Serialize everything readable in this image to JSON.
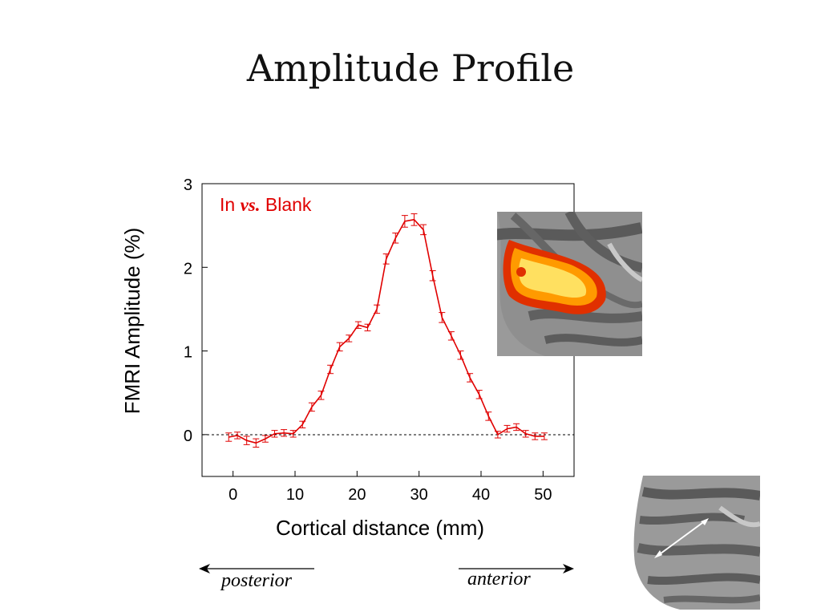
{
  "slide": {
    "title": "Amplitude Profile",
    "direction_left": "posterior",
    "direction_right": "anterior"
  },
  "chart_data": {
    "type": "line",
    "xlabel": "Cortical distance (mm)",
    "ylabel": "FMRI Amplitude (%)",
    "xlim": [
      -5,
      55
    ],
    "ylim": [
      -0.5,
      3
    ],
    "x_ticks": [
      0,
      10,
      20,
      30,
      40,
      50
    ],
    "y_ticks": [
      0,
      1,
      2,
      3
    ],
    "grid": false,
    "reference_line_y": 0,
    "annotation": {
      "prefix": "In",
      "italic": "vs.",
      "suffix": "Blank"
    },
    "series": [
      {
        "color": "#e00000",
        "x": [
          -0.7,
          0.7,
          2.2,
          3.7,
          5.2,
          6.7,
          8.2,
          9.7,
          11.2,
          12.7,
          14.2,
          15.7,
          17.2,
          18.7,
          20.2,
          21.7,
          23.2,
          24.7,
          26.2,
          27.7,
          29.2,
          30.7,
          32.2,
          33.7,
          35.2,
          36.7,
          38.2,
          39.7,
          41.2,
          42.7,
          44.2,
          45.7,
          47.2,
          48.7,
          50.2
        ],
        "y": [
          -0.03,
          -0.01,
          -0.07,
          -0.1,
          -0.05,
          0.01,
          0.02,
          0.01,
          0.12,
          0.33,
          0.47,
          0.78,
          1.05,
          1.15,
          1.31,
          1.28,
          1.5,
          2.1,
          2.35,
          2.55,
          2.57,
          2.45,
          1.9,
          1.4,
          1.18,
          0.95,
          0.68,
          0.48,
          0.22,
          0.0,
          0.07,
          0.09,
          0.01,
          -0.02,
          -0.02
        ],
        "error": [
          0.05,
          0.04,
          0.05,
          0.05,
          0.04,
          0.04,
          0.04,
          0.04,
          0.04,
          0.05,
          0.05,
          0.05,
          0.05,
          0.04,
          0.04,
          0.04,
          0.05,
          0.06,
          0.06,
          0.07,
          0.07,
          0.06,
          0.06,
          0.06,
          0.05,
          0.05,
          0.05,
          0.05,
          0.05,
          0.04,
          0.04,
          0.04,
          0.04,
          0.04,
          0.04
        ]
      }
    ]
  }
}
